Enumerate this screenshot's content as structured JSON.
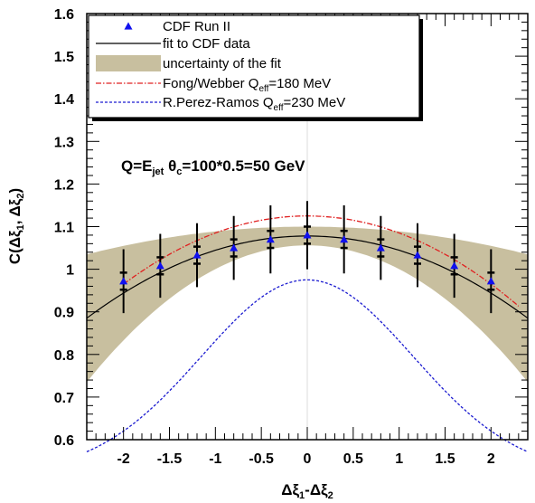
{
  "chart_data": {
    "type": "line",
    "xlabel_html": {
      "main": "Δξ",
      "s1": "1",
      "mid": "-Δξ",
      "s2": "2"
    },
    "ylabel_html": {
      "main": "C(Δξ",
      "s1": "1",
      "mid": ", Δξ",
      "s2": "2",
      "end": ")"
    },
    "xlim": [
      -2.4,
      2.4
    ],
    "ylim": [
      0.6,
      1.6
    ],
    "xticks": [
      -2,
      -1.5,
      -1,
      -0.5,
      0,
      0.5,
      1,
      1.5,
      2
    ],
    "xtick_labels": [
      "-2",
      "-1.5",
      "-1",
      "-0.5",
      "0",
      "0.5",
      "1",
      "1.5",
      "2"
    ],
    "yticks": [
      0.6,
      0.7,
      0.8,
      0.9,
      1.0,
      1.1,
      1.2,
      1.3,
      1.4,
      1.5,
      1.6
    ],
    "ytick_labels": [
      "0.6",
      "0.7",
      "0.8",
      "0.9",
      "1",
      "1.1",
      "1.2",
      "1.3",
      "1.4",
      "1.5",
      "1.6"
    ],
    "annotation": {
      "pre": "Q=E",
      "sub": "jet",
      "post": " θ",
      "sub2": "c",
      "tail": "=100*0.5=50 GeV"
    },
    "legend": {
      "placement": "top-left",
      "entries": [
        {
          "id": "cdf",
          "text": "CDF Run II"
        },
        {
          "id": "fit",
          "text": "fit to CDF data"
        },
        {
          "id": "band",
          "text": "uncertainty of the fit"
        },
        {
          "id": "fong",
          "pre": "Fong/Webber Q",
          "sub": "eff",
          "post": "=180 MeV"
        },
        {
          "id": "perez",
          "pre": "R.Perez-Ramos Q",
          "sub": "eff",
          "post": "=230 MeV"
        }
      ]
    },
    "series": {
      "cdf": {
        "x": [
          -2,
          -1.6,
          -1.2,
          -0.8,
          -0.4,
          0,
          0.4,
          0.8,
          1.2,
          1.6,
          2
        ],
        "y": [
          0.972,
          1.008,
          1.033,
          1.05,
          1.07,
          1.08,
          1.07,
          1.05,
          1.033,
          1.008,
          0.972
        ],
        "err_outer": [
          0.075,
          0.075,
          0.075,
          0.075,
          0.08,
          0.08,
          0.08,
          0.075,
          0.075,
          0.075,
          0.075
        ],
        "err_inner": [
          0.02,
          0.02,
          0.02,
          0.02,
          0.02,
          0.02,
          0.02,
          0.02,
          0.02,
          0.02,
          0.02
        ],
        "color": "#1010ee"
      },
      "fit": {
        "peak": 1.078,
        "curvature": 0.0335,
        "color": "#000000"
      },
      "band": {
        "halfwidth_at_0": 0.022,
        "halfwidth_growth": 0.0222,
        "color": "#c8bf9f"
      },
      "fong": {
        "peak": 1.125,
        "curvature": 0.04,
        "xrange": [
          -2,
          2.3
        ],
        "color": "#e02020"
      },
      "perez": {
        "peak": 0.975,
        "width": 1.15,
        "base": 0.52,
        "color": "#1a1ad0"
      }
    }
  }
}
